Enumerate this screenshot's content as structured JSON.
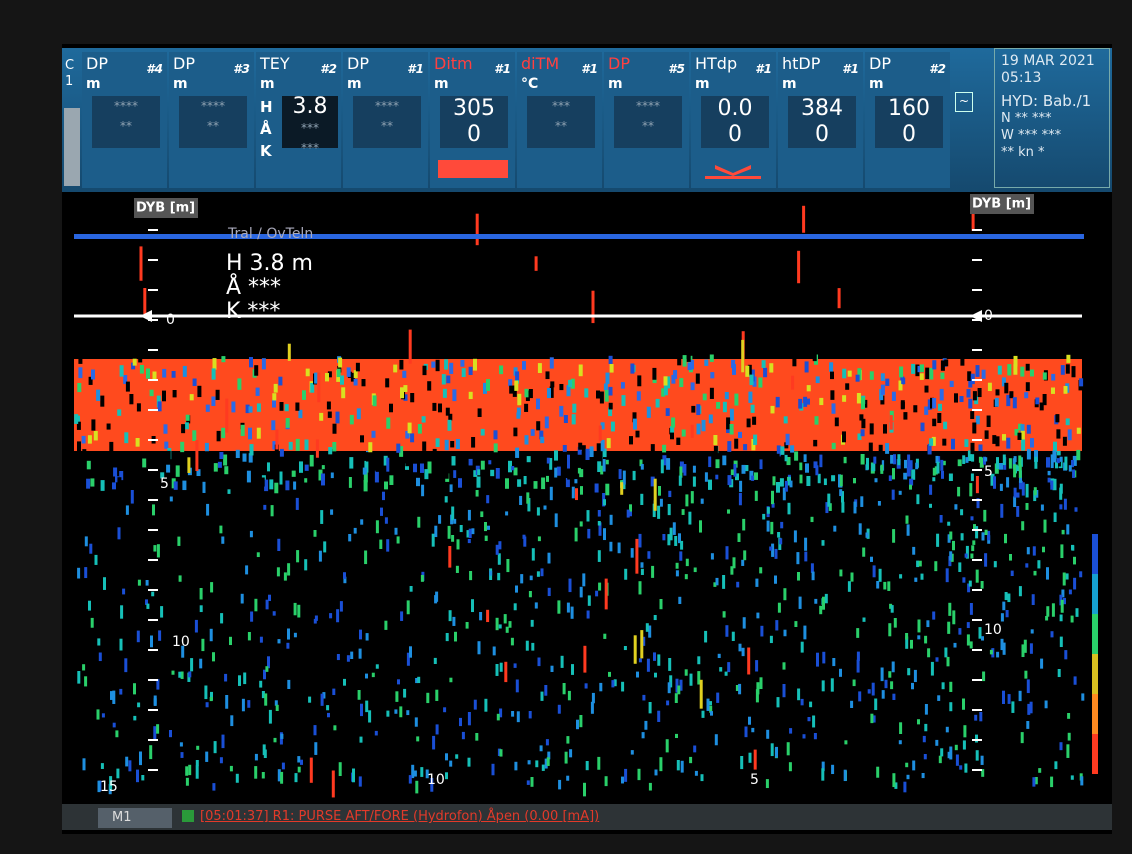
{
  "header": {
    "side_label": [
      "C",
      "1"
    ],
    "panels": [
      {
        "title": "DP",
        "number": "#4",
        "unit": "m",
        "readings": [
          "****",
          "**"
        ]
      },
      {
        "title": "DP",
        "number": "#3",
        "unit": "m",
        "readings": [
          "****",
          "**"
        ]
      },
      {
        "title": "TEY",
        "number": "#2",
        "unit": "m",
        "letters": [
          "H",
          "Å",
          "K"
        ],
        "readings": [
          "3.8",
          "***",
          "***"
        ]
      },
      {
        "title": "DP",
        "number": "#1",
        "unit": "m",
        "readings": [
          "****",
          "**"
        ]
      },
      {
        "title": "Ditm",
        "title_color": "#ff4040",
        "number": "#1",
        "unit": "m",
        "readings": [
          "305",
          "0"
        ]
      },
      {
        "title": "diTM",
        "title_color": "#ff4040",
        "number": "#1",
        "unit": "°C",
        "readings": [
          "***",
          "**"
        ]
      },
      {
        "title": "DP",
        "title_color": "#ff4040",
        "number": "#5",
        "unit": "m",
        "readings": [
          "****",
          "**"
        ]
      },
      {
        "title": "HTdp",
        "number": "#1",
        "unit": "m",
        "readings": [
          "0.0",
          "0"
        ]
      },
      {
        "title": "htDP",
        "number": "#1",
        "unit": "m",
        "readings": [
          "384",
          "0"
        ]
      },
      {
        "title": "DP",
        "number": "#2",
        "unit": "m",
        "readings": [
          "160",
          "0"
        ]
      }
    ],
    "button": "~",
    "info": [
      "19 MAR 2021",
      "05:13",
      "HYD: Bab./1",
      "N ** ***",
      "W *** ***",
      "** kn *"
    ]
  },
  "echogram": {
    "depth_label_left": "DYB [m]",
    "depth_label_right": "DYB [m]",
    "trawl_label": "Tral / OvTeln",
    "readouts": [
      "H 3.8 m",
      "Å ***",
      "K ***"
    ],
    "left_scale": [
      "0",
      "5",
      "10",
      "15"
    ],
    "right_scale": [
      "0",
      "5",
      "10"
    ],
    "bottom_scale": [
      "10",
      "5"
    ]
  },
  "status": {
    "mode": "M1",
    "message": "[05:01:37] R1: PURSE AFT/FORE (Hydrofon) Åpen (0.00 [mA])"
  }
}
